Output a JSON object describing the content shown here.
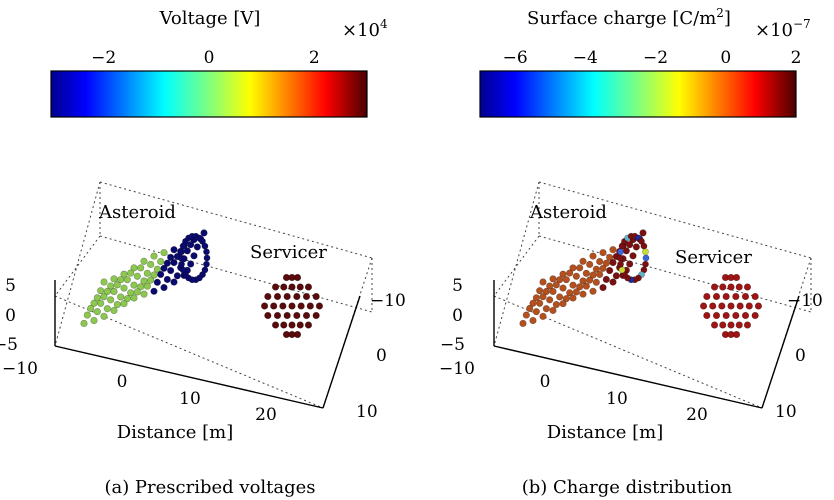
{
  "panels": [
    {
      "id": "a",
      "colorbar": {
        "title": "Voltage [V]",
        "multiplier_base": "×10",
        "multiplier_exp": "4",
        "range": [
          -3,
          3
        ],
        "ticks": [
          {
            "value": -2,
            "label": "−2"
          },
          {
            "value": 0,
            "label": "0"
          },
          {
            "value": 2,
            "label": "2"
          }
        ]
      },
      "object_labels": {
        "asteroid": "Asteroid",
        "servicer": "Servicer"
      },
      "axes": {
        "xlabel": "Distance [m]",
        "x_ticks": [
          "−10",
          "0",
          "10",
          "20"
        ],
        "y_ticks": [
          "−10",
          "0",
          "10"
        ],
        "z_ticks": [
          "5",
          "0",
          "−5"
        ]
      },
      "asteroid_color_mode": "split",
      "asteroid_colors": {
        "left": "#8cc850",
        "right": "#0a0a6e",
        "spots": []
      },
      "servicer_color": "#5a0a0a",
      "caption": "(a)  Prescribed voltages"
    },
    {
      "id": "b",
      "colorbar": {
        "title": "Surface charge [C/m",
        "title_sup": "2",
        "title_end": "]",
        "multiplier_base": "×10",
        "multiplier_exp": "−7",
        "range": [
          -7,
          2
        ],
        "ticks": [
          {
            "value": -6,
            "label": "−6"
          },
          {
            "value": -4,
            "label": "−4"
          },
          {
            "value": -2,
            "label": "−2"
          },
          {
            "value": 0,
            "label": "0"
          },
          {
            "value": 2,
            "label": "2"
          }
        ]
      },
      "object_labels": {
        "asteroid": "Asteroid",
        "servicer": "Servicer"
      },
      "axes": {
        "xlabel": "Distance [m]",
        "x_ticks": [
          "−10",
          "0",
          "10",
          "20"
        ],
        "y_ticks": [
          "−10",
          "0",
          "10"
        ],
        "z_ticks": [
          "5",
          "0",
          "−5"
        ]
      },
      "asteroid_color_mode": "charge",
      "asteroid_colors": {
        "left": "#b4501e",
        "right": "#7a1010",
        "spots": [
          "#3c64dc",
          "#c8dc32",
          "#1e2896",
          "#64b4c8"
        ]
      },
      "servicer_color": "#a01414",
      "caption": "(b)  Charge distribution"
    }
  ]
}
